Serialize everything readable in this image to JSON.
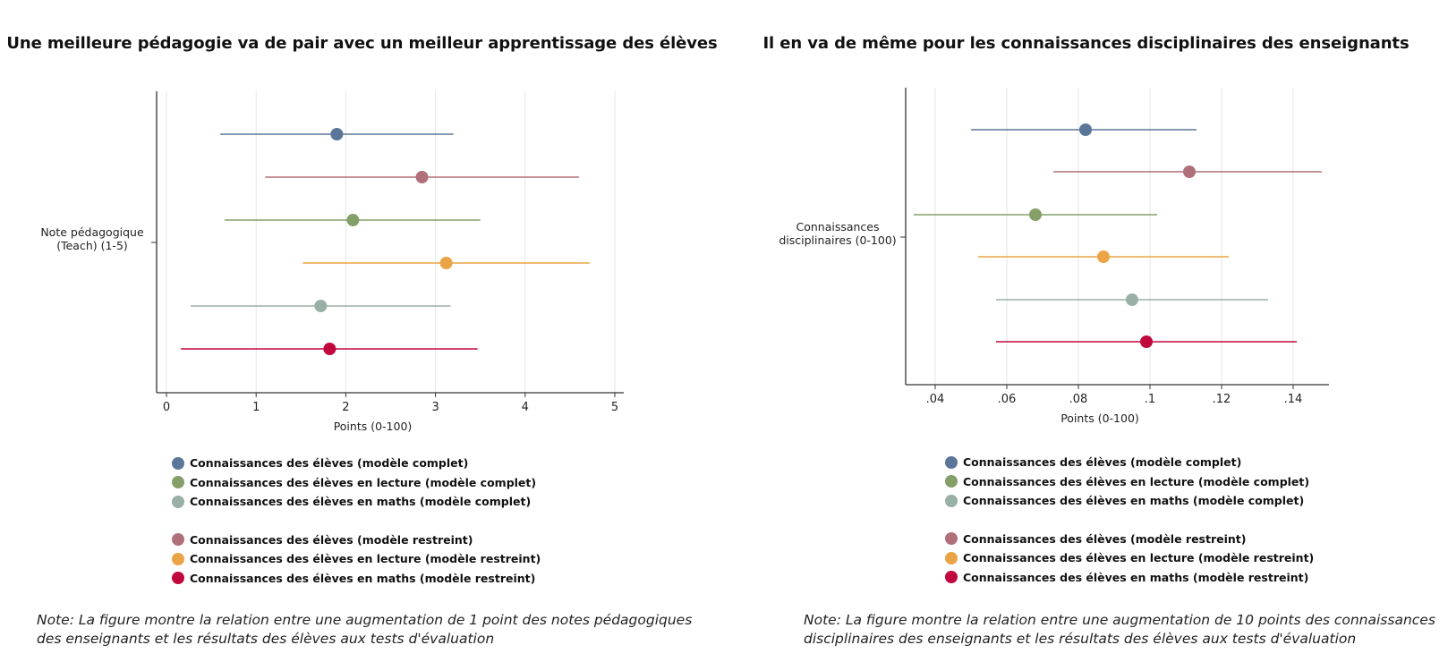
{
  "colors": {
    "blue": "#5a7699",
    "rose": "#b0707a",
    "green": "#84a068",
    "orange": "#eba445",
    "grayteal": "#98b0a6",
    "crimson": "#c0083c"
  },
  "left": {
    "title": "Une meilleure pédagogie va de pair avec un meilleur apprentissage des élèves",
    "ytick_label_line1": "Note pédagogique",
    "ytick_label_line2": "(Teach) (1-5)",
    "note_line1": "Note: La figure montre la relation entre une augmentation de 1 point des notes pédagogiques",
    "note_line2": "des enseignants et les résultats des élèves aux tests d'évaluation"
  },
  "right": {
    "title": "Il en va de même pour les connaissances disciplinaires des enseignants",
    "ytick_label_line1": "Connaissances",
    "ytick_label_line2": "disciplinaires (0-100)",
    "note_line1": "Note: La figure montre la relation entre une augmentation de 10 points des connaissances",
    "note_line2": "disciplinaires des enseignants et les résultats des élèves aux tests d'évaluation"
  },
  "legend": [
    {
      "label": "Connaissances des élèves (modèle complet)",
      "color": "#5a7699"
    },
    {
      "label": "Connaissances des élèves en lecture (modèle complet)",
      "color": "#84a068"
    },
    {
      "label": "Connaissances des élèves en maths (modèle complet)",
      "color": "#98b0a6"
    },
    {
      "label": "Connaissances des élèves (modèle restreint)",
      "color": "#b0707a"
    },
    {
      "label": "Connaissances des élèves en lecture (modèle restreint)",
      "color": "#eba445"
    },
    {
      "label": "Connaissances des élèves en maths (modèle restreint)",
      "color": "#c0083c"
    }
  ],
  "chart_data": [
    {
      "type": "scatter",
      "subtype": "coefficient-plot",
      "title": "Une meilleure pédagogie va de pair avec un meilleur apprentissage des élèves",
      "xlabel": "Points (0-100)",
      "ylabel": "",
      "xlim": [
        -0.1,
        5.1
      ],
      "xticks": [
        0,
        1,
        2,
        3,
        4,
        5
      ],
      "xtick_labels": [
        "0",
        "1",
        "2",
        "3",
        "4",
        "5"
      ],
      "grid": "vertical",
      "legend_placement": "bottom",
      "series": [
        {
          "name": "Connaissances des élèves (modèle complet)",
          "color": "#5a7699",
          "estimate": 1.9,
          "ci": [
            0.6,
            3.2
          ]
        },
        {
          "name": "Connaissances des élèves (modèle restreint)",
          "color": "#b0707a",
          "estimate": 2.85,
          "ci": [
            1.1,
            4.6
          ]
        },
        {
          "name": "Connaissances des élèves en lecture (modèle complet)",
          "color": "#84a068",
          "estimate": 2.08,
          "ci": [
            0.65,
            3.5
          ]
        },
        {
          "name": "Connaissances des élèves en lecture (modèle restreint)",
          "color": "#eba445",
          "estimate": 3.12,
          "ci": [
            1.52,
            4.72
          ]
        },
        {
          "name": "Connaissances des élèves en maths (modèle complet)",
          "color": "#98b0a6",
          "estimate": 1.72,
          "ci": [
            0.27,
            3.17
          ]
        },
        {
          "name": "Connaissances des élèves en maths (modèle restreint)",
          "color": "#c0083c",
          "estimate": 1.82,
          "ci": [
            0.16,
            3.47
          ]
        }
      ]
    },
    {
      "type": "scatter",
      "subtype": "coefficient-plot",
      "title": "Il en va de même pour les connaissances disciplinaires des enseignants",
      "xlabel": "Points (0-100)",
      "ylabel": "",
      "xlim": [
        0.032,
        0.15
      ],
      "xticks": [
        0.04,
        0.06,
        0.08,
        0.1,
        0.12,
        0.14
      ],
      "xtick_labels": [
        ".04",
        ".06",
        ".08",
        ".1",
        ".12",
        ".14"
      ],
      "grid": "vertical",
      "legend_placement": "bottom",
      "series": [
        {
          "name": "Connaissances des élèves (modèle complet)",
          "color": "#5a7699",
          "estimate": 0.082,
          "ci": [
            0.05,
            0.113
          ]
        },
        {
          "name": "Connaissances des élèves (modèle restreint)",
          "color": "#b0707a",
          "estimate": 0.111,
          "ci": [
            0.073,
            0.148
          ]
        },
        {
          "name": "Connaissances des élèves en lecture (modèle complet)",
          "color": "#84a068",
          "estimate": 0.068,
          "ci": [
            0.034,
            0.102
          ]
        },
        {
          "name": "Connaissances des élèves en lecture (modèle restreint)",
          "color": "#eba445",
          "estimate": 0.087,
          "ci": [
            0.052,
            0.122
          ]
        },
        {
          "name": "Connaissances des élèves en maths (modèle complet)",
          "color": "#98b0a6",
          "estimate": 0.095,
          "ci": [
            0.057,
            0.133
          ]
        },
        {
          "name": "Connaissances des élèves en maths (modèle restreint)",
          "color": "#c0083c",
          "estimate": 0.099,
          "ci": [
            0.057,
            0.141
          ]
        }
      ]
    }
  ]
}
